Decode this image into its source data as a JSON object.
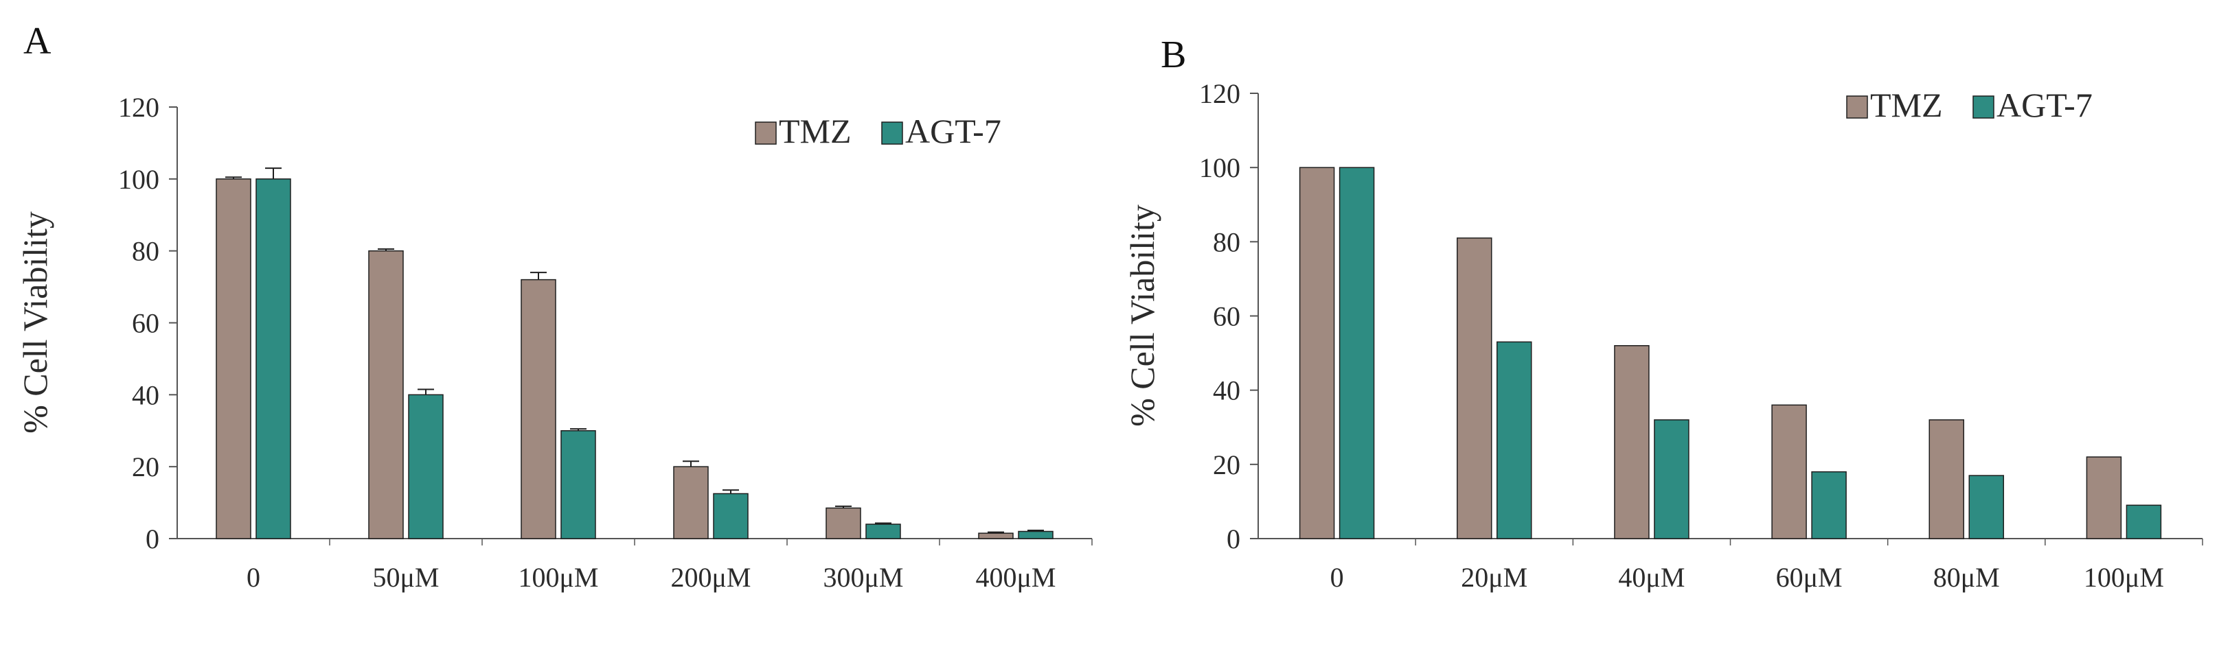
{
  "panels": {
    "a_letter": "A",
    "b_letter": "B"
  },
  "colors": {
    "TMZ": "#A08A80",
    "AGT-7": "#2E8C82",
    "edge": "#1f1f1f",
    "axis": "#555555",
    "text": "#2b2b2b"
  },
  "chart_data": [
    {
      "id": "A",
      "type": "bar",
      "ylabel": "% Cell Viability",
      "xlabel": "",
      "ylim": [
        0,
        120
      ],
      "yticks": [
        0,
        20,
        40,
        60,
        80,
        100,
        120
      ],
      "grid": false,
      "legend": "top-right",
      "categories": [
        "0",
        "50μM",
        "100μM",
        "200μM",
        "300μM",
        "400μM"
      ],
      "series": [
        {
          "name": "TMZ",
          "values": [
            100,
            80,
            72,
            20,
            8.5,
            1.5
          ],
          "errors": [
            0.5,
            0.5,
            2,
            1.5,
            0.5,
            0.3
          ]
        },
        {
          "name": "AGT-7",
          "values": [
            100,
            40,
            30,
            12.5,
            4,
            2
          ],
          "errors": [
            3,
            1.5,
            0.5,
            1,
            0.3,
            0.3
          ]
        }
      ]
    },
    {
      "id": "B",
      "type": "bar",
      "ylabel": "% Cell Viability",
      "xlabel": "",
      "ylim": [
        0,
        120
      ],
      "yticks": [
        0,
        20,
        40,
        60,
        80,
        100,
        120
      ],
      "grid": false,
      "legend": "top-right",
      "categories": [
        "0",
        "20μM",
        "40μM",
        "60μM",
        "80μM",
        "100μM"
      ],
      "series": [
        {
          "name": "TMZ",
          "values": [
            100,
            81,
            52,
            36,
            32,
            22
          ]
        },
        {
          "name": "AGT-7",
          "values": [
            100,
            53,
            32,
            18,
            17,
            9
          ]
        }
      ]
    }
  ]
}
